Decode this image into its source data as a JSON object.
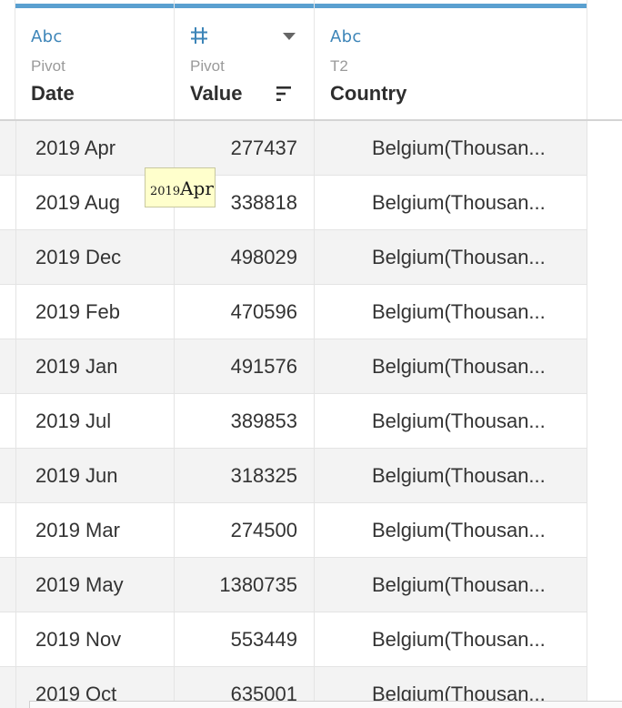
{
  "columns": [
    {
      "type_label": "Abc",
      "source": "Pivot",
      "name": "Date"
    },
    {
      "type_label": "#",
      "source": "Pivot",
      "name": "Value"
    },
    {
      "type_label": "Abc",
      "source": "T2",
      "name": "Country"
    }
  ],
  "rows": [
    {
      "date": "2019 Apr",
      "value": "277437",
      "country": "Belgium(Thousan..."
    },
    {
      "date": "2019 Aug",
      "value": "338818",
      "country": "Belgium(Thousan..."
    },
    {
      "date": "2019 Dec",
      "value": "498029",
      "country": "Belgium(Thousan..."
    },
    {
      "date": "2019 Feb",
      "value": "470596",
      "country": "Belgium(Thousan..."
    },
    {
      "date": "2019 Jan",
      "value": "491576",
      "country": "Belgium(Thousan..."
    },
    {
      "date": "2019 Jul",
      "value": "389853",
      "country": "Belgium(Thousan..."
    },
    {
      "date": "2019 Jun",
      "value": "318325",
      "country": "Belgium(Thousan..."
    },
    {
      "date": "2019 Mar",
      "value": "274500",
      "country": "Belgium(Thousan..."
    },
    {
      "date": "2019 May",
      "value": "1380735",
      "country": "Belgium(Thousan..."
    },
    {
      "date": "2019 Nov",
      "value": "553449",
      "country": "Belgium(Thousan..."
    },
    {
      "date": "2019 Oct",
      "value": "635001",
      "country": "Belgium(Thousan..."
    }
  ],
  "tooltip": {
    "year": "2019",
    "month": "Apr"
  },
  "colors": {
    "accent": "#5aa0d0",
    "type_label": "#3d85b8",
    "row_alt": "#f3f3f3",
    "tooltip_bg": "#ffffcc"
  }
}
